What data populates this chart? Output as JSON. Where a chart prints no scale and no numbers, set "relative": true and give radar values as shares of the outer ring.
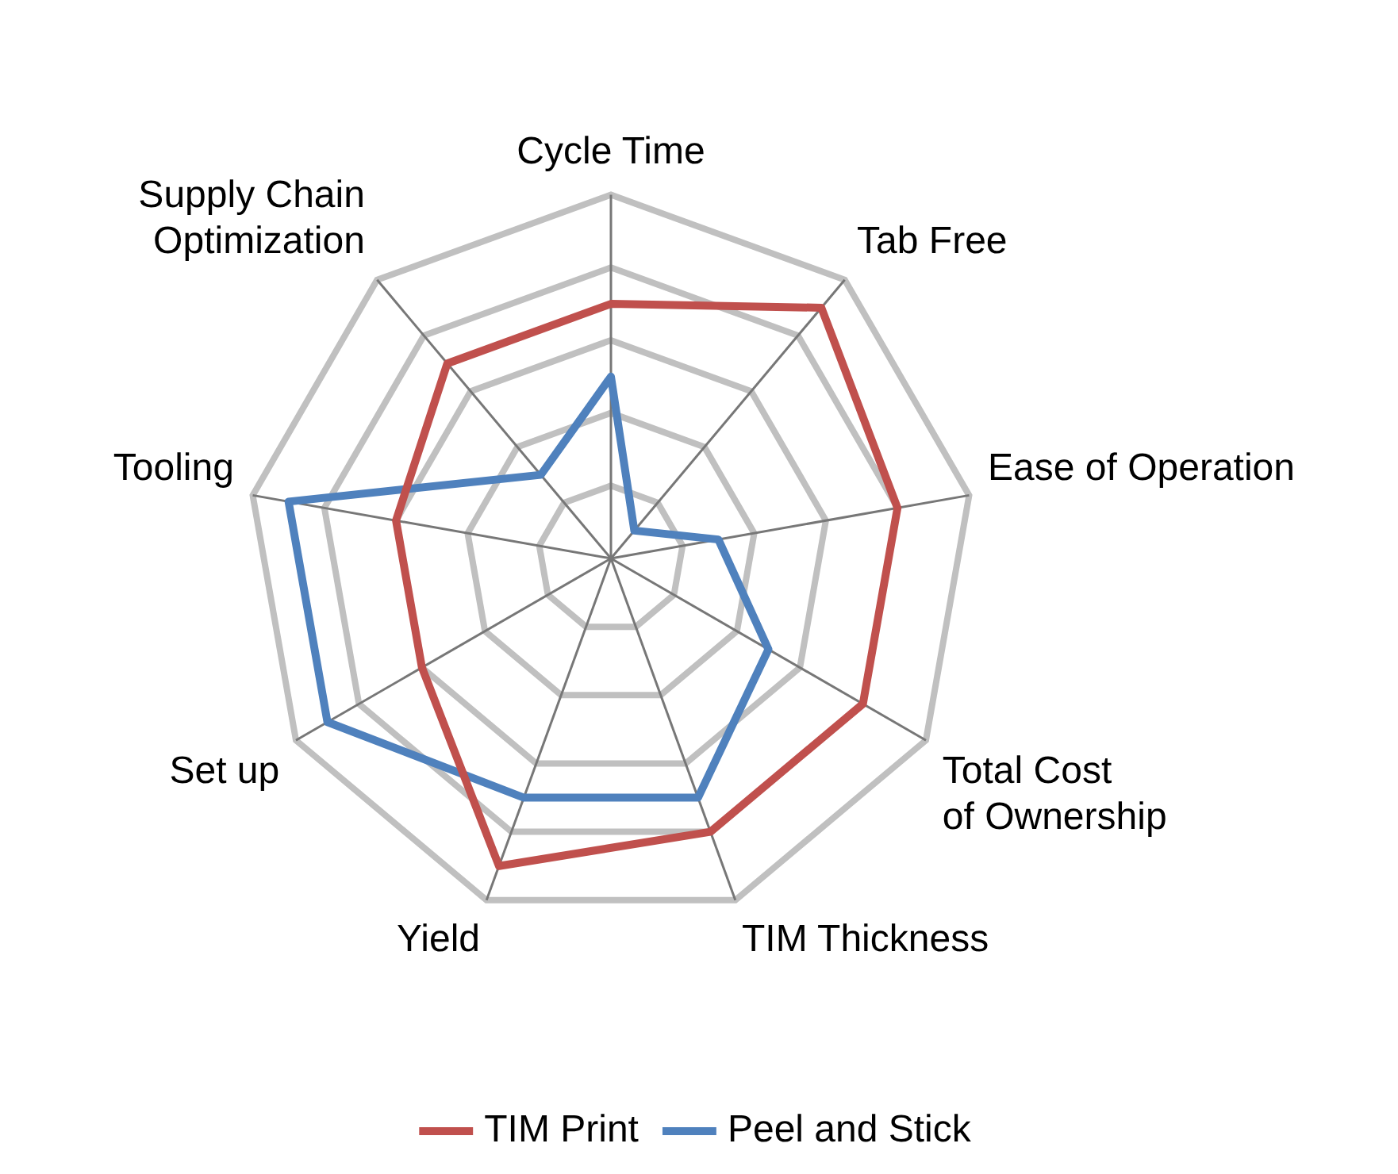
{
  "chart_data": {
    "type": "radar",
    "relative": true,
    "categories": [
      "Cycle Time",
      "Tab Free",
      "Ease of Operation",
      "Total Cost of Ownership",
      "TIM Thickness",
      "Yield",
      "Set up",
      "Tooling",
      "Supply Chain Optimization"
    ],
    "series": [
      {
        "name": "TIM Print",
        "color": "#c0504d",
        "values": [
          0.7,
          0.9,
          0.8,
          0.8,
          0.8,
          0.9,
          0.6,
          0.6,
          0.7
        ]
      },
      {
        "name": "Peel and Stick",
        "color": "#4f81bd",
        "values": [
          0.5,
          0.1,
          0.3,
          0.5,
          0.7,
          0.7,
          0.9,
          0.9,
          0.3
        ]
      }
    ],
    "legend": "bottom",
    "marker": "none",
    "line_style": "solid",
    "grid": true
  }
}
